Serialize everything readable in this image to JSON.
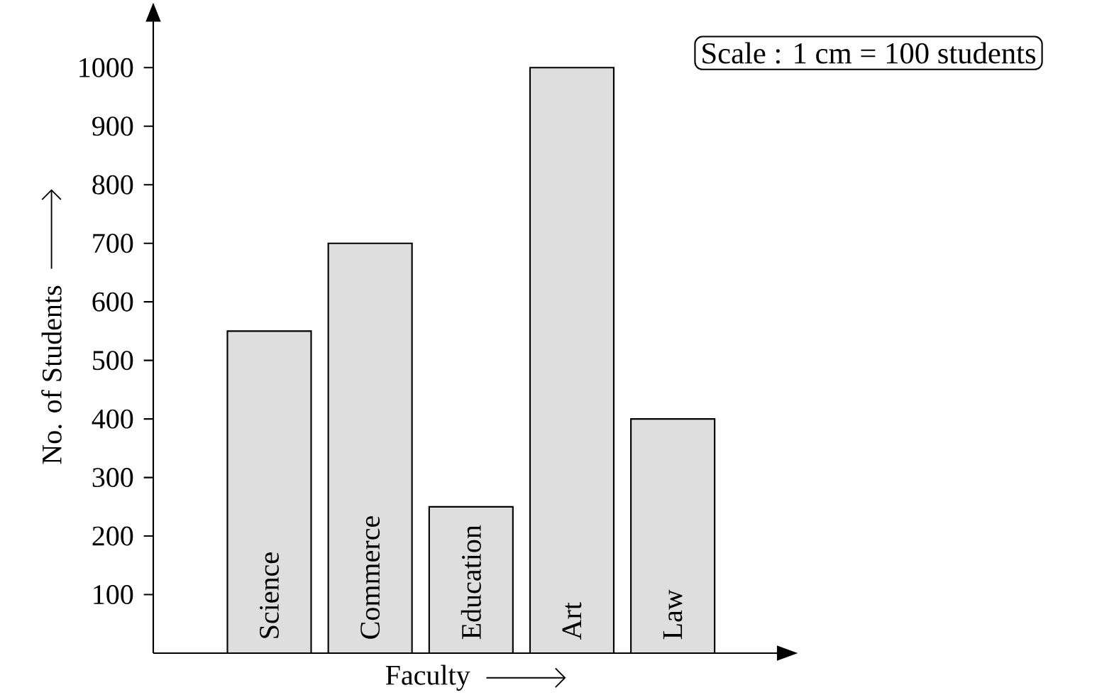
{
  "chart_data": {
    "type": "bar",
    "categories": [
      "Science",
      "Commerce",
      "Education",
      "Art",
      "Law"
    ],
    "values": [
      550,
      700,
      250,
      1000,
      400
    ],
    "color": "#dedede",
    "ylim": [
      0,
      1080
    ],
    "yticks": [
      100,
      200,
      300,
      400,
      500,
      600,
      700,
      800,
      900,
      1000
    ],
    "xlabel": "Faculty",
    "ylabel": "No. of Students",
    "annotations": [
      "Scale : 1 cm = 100 students"
    ],
    "grid": false
  }
}
